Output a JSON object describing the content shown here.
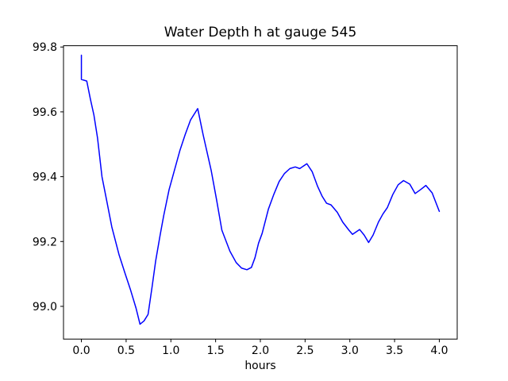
{
  "figure": {
    "background": "#ffffff",
    "frame_color": "#000000",
    "text_color": "#000000"
  },
  "chart_data": {
    "type": "line",
    "title": "Water Depth h at gauge 545",
    "xlabel": "hours",
    "ylabel": "",
    "grid": false,
    "legend": "none",
    "line_color": "#0000ff",
    "line_width": 1.5,
    "xlim": [
      -0.2,
      4.2
    ],
    "ylim": [
      98.899,
      99.804
    ],
    "x_ticks": [
      0.0,
      0.5,
      1.0,
      1.5,
      2.0,
      2.5,
      3.0,
      3.5,
      4.0
    ],
    "x_tick_labels": [
      "0.0",
      "0.5",
      "1.0",
      "1.5",
      "2.0",
      "2.5",
      "3.0",
      "3.5",
      "4.0"
    ],
    "y_ticks": [
      99.0,
      99.2,
      99.4,
      99.6,
      99.8
    ],
    "y_tick_labels": [
      "99.0",
      "99.2",
      "99.4",
      "99.6",
      "99.8"
    ],
    "series": [
      {
        "name": "h",
        "x": [
          0.0,
          0.0,
          0.06,
          0.1,
          0.14,
          0.18,
          0.23,
          0.28,
          0.34,
          0.42,
          0.49,
          0.55,
          0.61,
          0.655,
          0.7,
          0.745,
          0.79,
          0.83,
          0.88,
          0.92,
          0.98,
          1.04,
          1.1,
          1.16,
          1.22,
          1.3,
          1.36,
          1.45,
          1.51,
          1.57,
          1.66,
          1.73,
          1.79,
          1.85,
          1.9,
          1.94,
          1.98,
          2.02,
          2.09,
          2.15,
          2.21,
          2.27,
          2.33,
          2.39,
          2.44,
          2.52,
          2.58,
          2.64,
          2.69,
          2.74,
          2.79,
          2.86,
          2.92,
          2.99,
          3.03,
          3.11,
          3.16,
          3.21,
          3.26,
          3.32,
          3.37,
          3.42,
          3.48,
          3.54,
          3.6,
          3.67,
          3.73,
          3.79,
          3.85,
          3.92,
          4.0
        ],
        "y": [
          99.775,
          99.7,
          99.695,
          99.64,
          99.59,
          99.52,
          99.4,
          99.33,
          99.245,
          99.16,
          99.1,
          99.05,
          98.995,
          98.945,
          98.955,
          98.975,
          99.06,
          99.14,
          99.22,
          99.28,
          99.36,
          99.42,
          99.48,
          99.53,
          99.575,
          99.61,
          99.53,
          99.42,
          99.33,
          99.235,
          99.17,
          99.135,
          99.118,
          99.113,
          99.12,
          99.15,
          99.195,
          99.225,
          99.3,
          99.345,
          99.385,
          99.41,
          99.425,
          99.43,
          99.425,
          99.44,
          99.415,
          99.37,
          99.34,
          99.318,
          99.313,
          99.29,
          99.26,
          99.235,
          99.222,
          99.237,
          99.22,
          99.197,
          99.22,
          99.26,
          99.285,
          99.305,
          99.345,
          99.375,
          99.388,
          99.377,
          99.348,
          99.36,
          99.373,
          99.35,
          99.293
        ]
      }
    ]
  }
}
